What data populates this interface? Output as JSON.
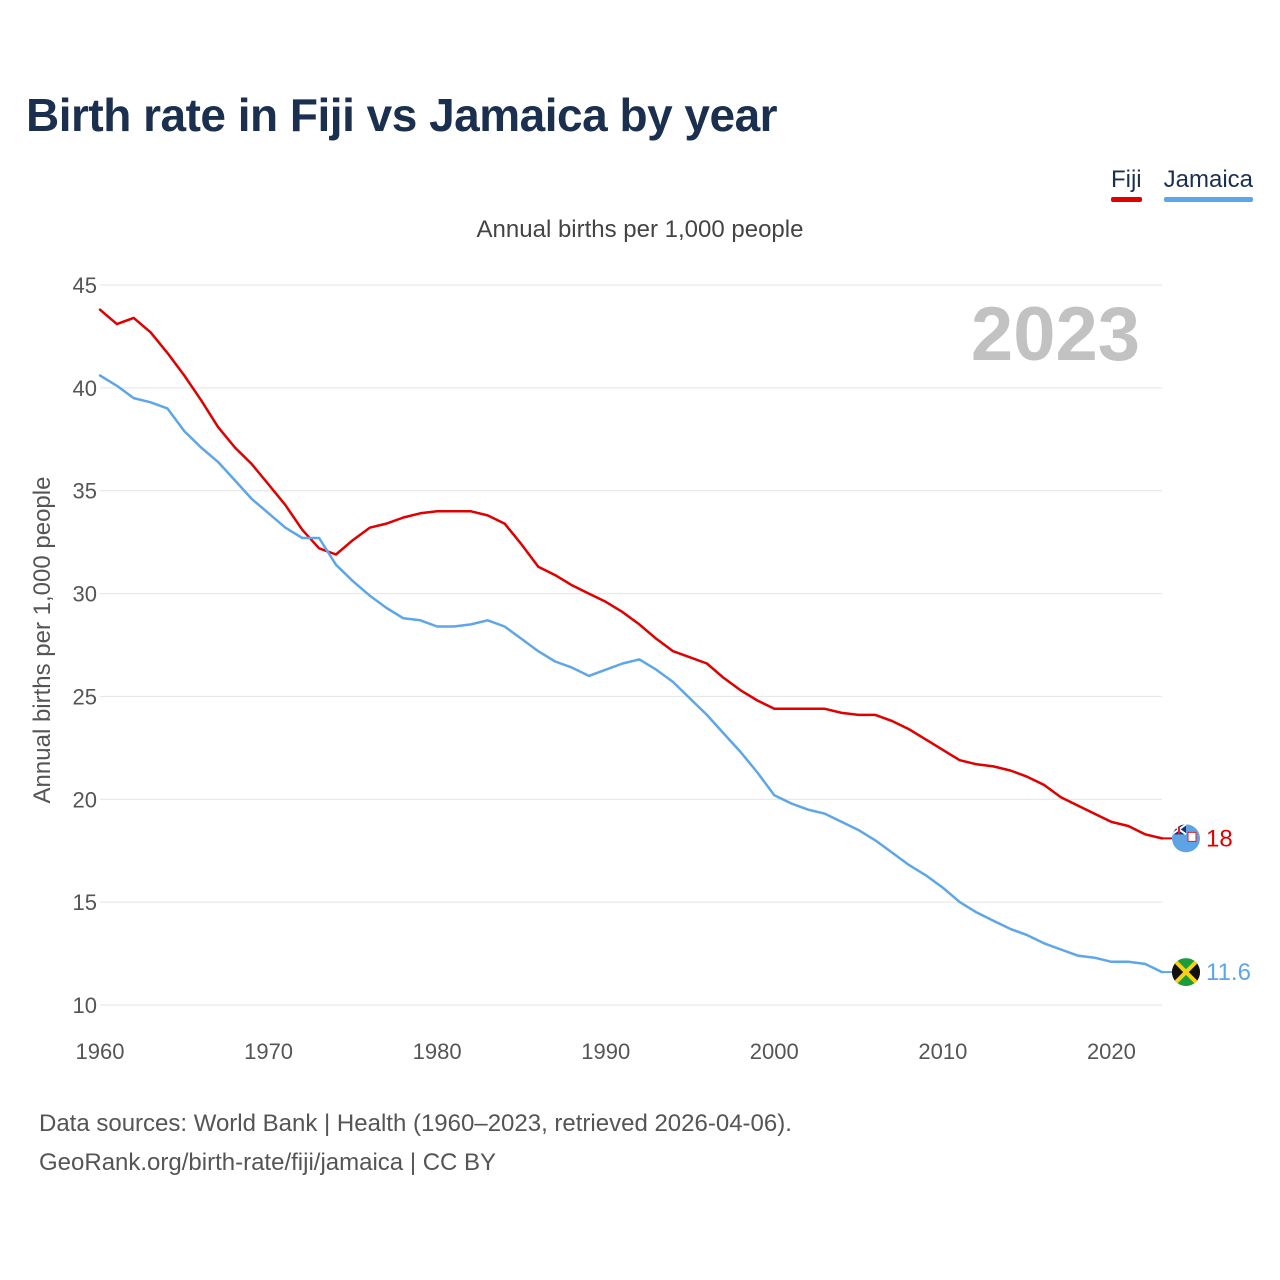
{
  "title": "Birth rate in Fiji vs Jamaica by year",
  "legend": [
    {
      "label": "Fiji",
      "color": "#e00000"
    },
    {
      "label": "Jamaica",
      "color": "#5ea6e8"
    }
  ],
  "footer": {
    "sources": "Data sources: World Bank | Health (1960–2023, retrieved 2026-04-06).",
    "credit": "GeoRank.org/birth-rate/fiji/jamaica | CC BY"
  },
  "chart_data": {
    "type": "line",
    "title": "Birth rate in Fiji vs Jamaica by year",
    "subtitle": "Annual births per 1,000 people",
    "xlabel": "",
    "ylabel": "Annual births per 1,000 people",
    "year_label": "2023",
    "xlim": [
      1960,
      2023
    ],
    "ylim": [
      10,
      45
    ],
    "xticks": [
      1960,
      1970,
      1980,
      1990,
      2000,
      2010,
      2020
    ],
    "yticks": [
      10,
      15,
      20,
      25,
      30,
      35,
      40,
      45
    ],
    "grid": true,
    "legend_position": "top-right",
    "x": [
      1960,
      1961,
      1962,
      1963,
      1964,
      1965,
      1966,
      1967,
      1968,
      1969,
      1970,
      1971,
      1972,
      1973,
      1974,
      1975,
      1976,
      1977,
      1978,
      1979,
      1980,
      1981,
      1982,
      1983,
      1984,
      1985,
      1986,
      1987,
      1988,
      1989,
      1990,
      1991,
      1992,
      1993,
      1994,
      1995,
      1996,
      1997,
      1998,
      1999,
      2000,
      2001,
      2002,
      2003,
      2004,
      2005,
      2006,
      2007,
      2008,
      2009,
      2010,
      2011,
      2012,
      2013,
      2014,
      2015,
      2016,
      2017,
      2018,
      2019,
      2020,
      2021,
      2022,
      2023
    ],
    "series": [
      {
        "name": "Fiji",
        "color": "#e00000",
        "end_label": "18",
        "values": [
          43.8,
          43.1,
          43.4,
          42.7,
          41.7,
          40.6,
          39.4,
          38.1,
          37.1,
          36.3,
          35.3,
          34.3,
          33.1,
          32.2,
          31.9,
          32.6,
          33.2,
          33.4,
          33.7,
          33.9,
          34.0,
          34.0,
          34.0,
          33.8,
          33.4,
          32.4,
          31.3,
          30.9,
          30.4,
          30.0,
          29.6,
          29.1,
          28.5,
          27.8,
          27.2,
          26.9,
          26.6,
          25.9,
          25.3,
          24.8,
          24.4,
          24.4,
          24.4,
          24.4,
          24.2,
          24.1,
          24.1,
          23.8,
          23.4,
          22.9,
          22.4,
          21.9,
          21.7,
          21.6,
          21.4,
          21.1,
          20.7,
          20.1,
          19.7,
          19.3,
          18.9,
          18.7,
          18.3,
          18.1
        ]
      },
      {
        "name": "Jamaica",
        "color": "#5ea6e8",
        "end_label": "11.6",
        "values": [
          40.6,
          40.1,
          39.5,
          39.3,
          39.0,
          37.9,
          37.1,
          36.4,
          35.5,
          34.6,
          33.9,
          33.2,
          32.7,
          32.7,
          31.4,
          30.6,
          29.9,
          29.3,
          28.8,
          28.7,
          28.4,
          28.4,
          28.5,
          28.7,
          28.4,
          27.8,
          27.2,
          26.7,
          26.4,
          26.0,
          26.3,
          26.6,
          26.8,
          26.3,
          25.7,
          24.9,
          24.1,
          23.2,
          22.3,
          21.3,
          20.2,
          19.8,
          19.5,
          19.3,
          18.9,
          18.5,
          18.0,
          17.4,
          16.8,
          16.3,
          15.7,
          15.0,
          14.5,
          14.1,
          13.7,
          13.4,
          13.0,
          12.7,
          12.4,
          12.3,
          12.1,
          12.1,
          12.0,
          11.6
        ]
      }
    ]
  }
}
